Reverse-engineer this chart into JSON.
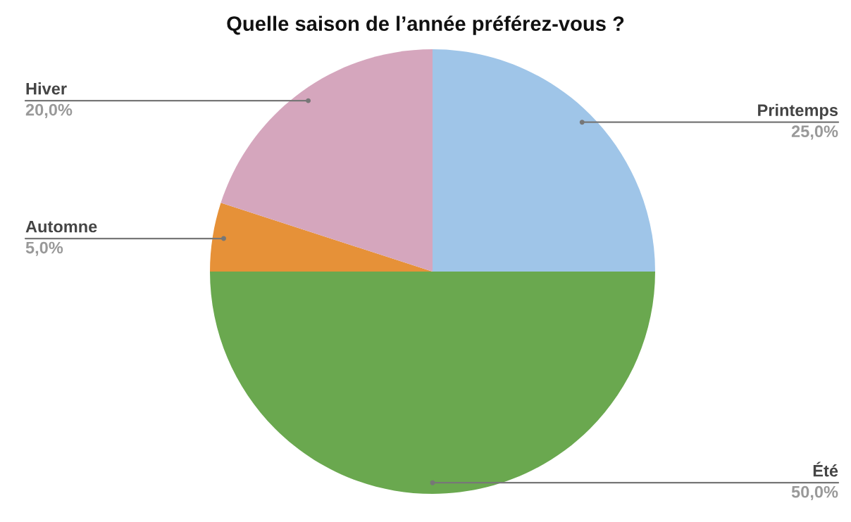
{
  "chart_data": {
    "type": "pie",
    "title": "Quelle saison de l’année préférez-vous ?",
    "categories": [
      "Printemps",
      "Été",
      "Automne",
      "Hiver"
    ],
    "values": [
      25,
      50,
      5,
      20
    ],
    "value_labels": [
      "25,0%",
      "50,0%",
      "5,0%",
      "20,0%"
    ],
    "colors": [
      "#9fc5e8",
      "#6aa84f",
      "#e69138",
      "#d5a6bd"
    ],
    "legend": false
  }
}
